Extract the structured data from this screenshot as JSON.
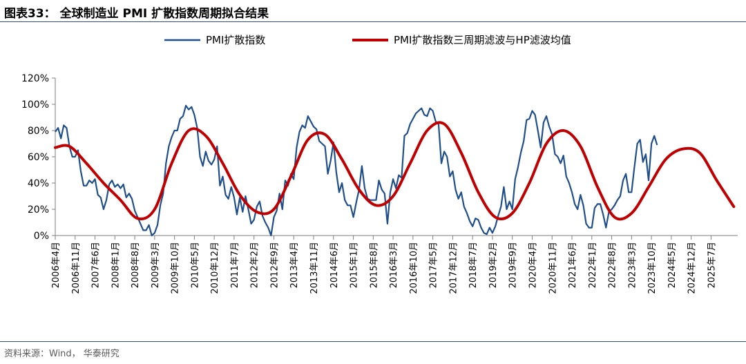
{
  "header": {
    "title": "图表33： 全球制造业 PMI 扩散指数周期拟合结果"
  },
  "footer": {
    "source": "资料来源：Wind， 华泰研究"
  },
  "colors": {
    "pmi_line": "#1f4e8c",
    "filter_line": "#c00000",
    "rule": "#2e4d7f"
  },
  "chart_data": {
    "type": "line",
    "title": "",
    "xlabel": "",
    "ylabel": "",
    "ylim": [
      0,
      120
    ],
    "y_ticks": [
      "0%",
      "20%",
      "40%",
      "60%",
      "80%",
      "100%",
      "120%"
    ],
    "y_tick_values": [
      0,
      20,
      40,
      60,
      80,
      100,
      120
    ],
    "x_tick_labels": [
      "2006年4月",
      "2006年11月",
      "2007年6月",
      "2008年1月",
      "2008年8月",
      "2009年3月",
      "2009年10月",
      "2010年5月",
      "2010年12月",
      "2011年7月",
      "2012年2月",
      "2012年9月",
      "2013年4月",
      "2013年11月",
      "2014年6月",
      "2015年1月",
      "2015年8月",
      "2016年3月",
      "2016年10月",
      "2017年5月",
      "2017年12月",
      "2018年7月",
      "2019年2月",
      "2019年9月",
      "2020年4月",
      "2020年11月",
      "2021年6月",
      "2022年1月",
      "2022年8月",
      "2023年3月",
      "2023年10月",
      "2024年5月",
      "2024年12月",
      "2025年7月"
    ],
    "grid": false,
    "legend_position": "top",
    "series": [
      {
        "name": "PMI扩散指数",
        "points": [
          [
            "2006年4月",
            79
          ],
          [
            "2006年5月",
            82
          ],
          [
            "2006年6月",
            74
          ],
          [
            "2006年7月",
            84
          ],
          [
            "2006年8月",
            82
          ],
          [
            "2006年9月",
            68
          ],
          [
            "2006年10月",
            60
          ],
          [
            "2006年11月",
            60
          ],
          [
            "2006年12月",
            65
          ],
          [
            "2007年1月",
            49
          ],
          [
            "2007年2月",
            38
          ],
          [
            "2007年3月",
            38
          ],
          [
            "2007年4月",
            42
          ],
          [
            "2007年5月",
            40
          ],
          [
            "2007年6月",
            43
          ],
          [
            "2007年7月",
            31
          ],
          [
            "2007年8月",
            29
          ],
          [
            "2007年9月",
            20
          ],
          [
            "2007年10月",
            27
          ],
          [
            "2007年11月",
            39
          ],
          [
            "2007年12月",
            42
          ],
          [
            "2008年1月",
            37
          ],
          [
            "2008年2月",
            39
          ],
          [
            "2008年3月",
            36
          ],
          [
            "2008年4月",
            39
          ],
          [
            "2008年5月",
            29
          ],
          [
            "2008年6月",
            32
          ],
          [
            "2008年7月",
            28
          ],
          [
            "2008年8月",
            19
          ],
          [
            "2008年9月",
            14
          ],
          [
            "2008年10月",
            9
          ],
          [
            "2008年11月",
            4
          ],
          [
            "2008年12月",
            4
          ],
          [
            "2009年1月",
            8
          ],
          [
            "2009年2月",
            0
          ],
          [
            "2009年3月",
            2
          ],
          [
            "2009年4月",
            8
          ],
          [
            "2009年5月",
            23
          ],
          [
            "2009年6月",
            32
          ],
          [
            "2009年7月",
            55
          ],
          [
            "2009年8月",
            68
          ],
          [
            "2009年9月",
            75
          ],
          [
            "2009年10月",
            80
          ],
          [
            "2009年11月",
            80
          ],
          [
            "2009年12月",
            89
          ],
          [
            "2010年1月",
            91
          ],
          [
            "2010年2月",
            99
          ],
          [
            "2010年3月",
            96
          ],
          [
            "2010年4月",
            98
          ],
          [
            "2010年5月",
            92
          ],
          [
            "2010年6月",
            82
          ],
          [
            "2010年7月",
            60
          ],
          [
            "2010年8月",
            53
          ],
          [
            "2010年9月",
            64
          ],
          [
            "2010年10月",
            57
          ],
          [
            "2010年11月",
            54
          ],
          [
            "2010年12月",
            58
          ],
          [
            "2011年1月",
            68
          ],
          [
            "2011年2月",
            38
          ],
          [
            "2011年3月",
            45
          ],
          [
            "2011年4月",
            31
          ],
          [
            "2011年5月",
            28
          ],
          [
            "2011年6月",
            37
          ],
          [
            "2011年7月",
            29
          ],
          [
            "2011年8月",
            16
          ],
          [
            "2011年9月",
            29
          ],
          [
            "2011年10月",
            18
          ],
          [
            "2011年11月",
            30
          ],
          [
            "2011年12月",
            20
          ],
          [
            "2012年1月",
            9
          ],
          [
            "2012年2月",
            12
          ],
          [
            "2012年3月",
            22
          ],
          [
            "2012年4月",
            26
          ],
          [
            "2012年5月",
            15
          ],
          [
            "2012年6月",
            10
          ],
          [
            "2012年7月",
            6
          ],
          [
            "2012年8月",
            0
          ],
          [
            "2012年9月",
            14
          ],
          [
            "2012年10月",
            19
          ],
          [
            "2012年11月",
            32
          ],
          [
            "2012年12月",
            20
          ],
          [
            "2013年1月",
            42
          ],
          [
            "2013年2月",
            38
          ],
          [
            "2013年3月",
            47
          ],
          [
            "2013年4月",
            43
          ],
          [
            "2013年5月",
            67
          ],
          [
            "2013年6月",
            79
          ],
          [
            "2013年7月",
            84
          ],
          [
            "2013年8月",
            82
          ],
          [
            "2013年9月",
            91
          ],
          [
            "2013年10月",
            87
          ],
          [
            "2013年11月",
            83
          ],
          [
            "2013年12月",
            81
          ],
          [
            "2014年1月",
            72
          ],
          [
            "2014年2月",
            70
          ],
          [
            "2014年3月",
            68
          ],
          [
            "2014年4月",
            47
          ],
          [
            "2014年5月",
            57
          ],
          [
            "2014年6月",
            71
          ],
          [
            "2014年7月",
            48
          ],
          [
            "2014年8月",
            33
          ],
          [
            "2014年9月",
            40
          ],
          [
            "2014年10月",
            27
          ],
          [
            "2014年11月",
            23
          ],
          [
            "2014年12月",
            23
          ],
          [
            "2015年1月",
            14
          ],
          [
            "2015年2月",
            25
          ],
          [
            "2015年3月",
            35
          ],
          [
            "2015年4月",
            53
          ],
          [
            "2015年5月",
            36
          ],
          [
            "2015年6月",
            28
          ],
          [
            "2015年7月",
            27
          ],
          [
            "2015年8月",
            27
          ],
          [
            "2015年9月",
            27
          ],
          [
            "2015年10月",
            42
          ],
          [
            "2015年11月",
            35
          ],
          [
            "2015年12月",
            32
          ],
          [
            "2016年1月",
            9
          ],
          [
            "2016年2月",
            33
          ],
          [
            "2016年3月",
            43
          ],
          [
            "2016年4月",
            36
          ],
          [
            "2016年5月",
            46
          ],
          [
            "2016年6月",
            44
          ],
          [
            "2016年7月",
            76
          ],
          [
            "2016年8月",
            78
          ],
          [
            "2016年9月",
            85
          ],
          [
            "2016年10月",
            89
          ],
          [
            "2016年11月",
            93
          ],
          [
            "2016年12月",
            95
          ],
          [
            "2017年1月",
            97
          ],
          [
            "2017年2月",
            92
          ],
          [
            "2017年3月",
            91
          ],
          [
            "2017年4月",
            97
          ],
          [
            "2017年5月",
            95
          ],
          [
            "2017年6月",
            87
          ],
          [
            "2017年7月",
            85
          ],
          [
            "2017年8月",
            55
          ],
          [
            "2017年9月",
            64
          ],
          [
            "2017年10月",
            60
          ],
          [
            "2017年11月",
            45
          ],
          [
            "2017年12月",
            49
          ],
          [
            "2018年1月",
            35
          ],
          [
            "2018年2月",
            28
          ],
          [
            "2018年3月",
            33
          ],
          [
            "2018年4月",
            22
          ],
          [
            "2018年5月",
            17
          ],
          [
            "2018年6月",
            11
          ],
          [
            "2018年7月",
            7
          ],
          [
            "2018年8月",
            13
          ],
          [
            "2018年9月",
            12
          ],
          [
            "2018年10月",
            6
          ],
          [
            "2018年11月",
            2
          ],
          [
            "2018年12月",
            1
          ],
          [
            "2019年1月",
            6
          ],
          [
            "2019年2月",
            2
          ],
          [
            "2019年3月",
            7
          ],
          [
            "2019年4月",
            15
          ],
          [
            "2019年5月",
            22
          ],
          [
            "2019年6月",
            37
          ],
          [
            "2019年7月",
            20
          ],
          [
            "2019年8月",
            26
          ],
          [
            "2019年9月",
            20
          ],
          [
            "2019年10月",
            43
          ],
          [
            "2019年11月",
            52
          ],
          [
            "2019年12月",
            63
          ],
          [
            "2020年1月",
            72
          ],
          [
            "2020年2月",
            88
          ],
          [
            "2020年3月",
            89
          ],
          [
            "2020年4月",
            95
          ],
          [
            "2020年5月",
            92
          ],
          [
            "2020年6月",
            80
          ],
          [
            "2020年7月",
            67
          ],
          [
            "2020年8月",
            86
          ],
          [
            "2020年9月",
            91
          ],
          [
            "2020年10月",
            83
          ],
          [
            "2020年11月",
            77
          ],
          [
            "2020年12月",
            62
          ],
          [
            "2021年1月",
            60
          ],
          [
            "2021年2月",
            55
          ],
          [
            "2021年3月",
            61
          ],
          [
            "2021年4月",
            45
          ],
          [
            "2021年5月",
            40
          ],
          [
            "2021年6月",
            33
          ],
          [
            "2021年7月",
            24
          ],
          [
            "2021年8月",
            20
          ],
          [
            "2021年9月",
            31
          ],
          [
            "2021年10月",
            23
          ],
          [
            "2021年11月",
            9
          ],
          [
            "2021年12月",
            6
          ],
          [
            "2022年1月",
            6
          ],
          [
            "2022年2月",
            21
          ],
          [
            "2022年3月",
            24
          ],
          [
            "2022年4月",
            24
          ],
          [
            "2022年5月",
            16
          ],
          [
            "2022年6月",
            6
          ],
          [
            "2022年7月",
            18
          ],
          [
            "2022年8月",
            20
          ],
          [
            "2022年9月",
            23
          ],
          [
            "2022年10月",
            27
          ],
          [
            "2022年11月",
            30
          ],
          [
            "2022年12月",
            42
          ],
          [
            "2023年1月",
            47
          ],
          [
            "2023年2月",
            33
          ],
          [
            "2023年3月",
            33
          ],
          [
            "2023年4月",
            52
          ],
          [
            "2023年5月",
            70
          ],
          [
            "2023年6月",
            73
          ],
          [
            "2023年7月",
            56
          ],
          [
            "2023年8月",
            62
          ],
          [
            "2023年9月",
            42
          ],
          [
            "2023年10月",
            70
          ],
          [
            "2023年11月",
            76
          ],
          [
            "2023年12月",
            69
          ]
        ]
      },
      {
        "name": "PMI扩散指数三周期滤波与HP滤波均值",
        "points": [
          [
            "2006年4月",
            67
          ],
          [
            "2006年9月",
            68
          ],
          [
            "2007年3月",
            55
          ],
          [
            "2007年9月",
            40
          ],
          [
            "2008年3月",
            27
          ],
          [
            "2008年9月",
            13
          ],
          [
            "2009年3月",
            20
          ],
          [
            "2009年9月",
            55
          ],
          [
            "2010年3月",
            80
          ],
          [
            "2010年9月",
            76
          ],
          [
            "2011年3月",
            55
          ],
          [
            "2011年9月",
            31
          ],
          [
            "2012年3月",
            18
          ],
          [
            "2012年9月",
            20
          ],
          [
            "2013年3月",
            45
          ],
          [
            "2013年9月",
            73
          ],
          [
            "2014年3月",
            77
          ],
          [
            "2014年9月",
            58
          ],
          [
            "2015年3月",
            35
          ],
          [
            "2015年9月",
            23
          ],
          [
            "2016年3月",
            30
          ],
          [
            "2016年9月",
            55
          ],
          [
            "2017年3月",
            80
          ],
          [
            "2017年9月",
            85
          ],
          [
            "2018年3月",
            63
          ],
          [
            "2018年9月",
            33
          ],
          [
            "2019年3月",
            14
          ],
          [
            "2019年9月",
            17
          ],
          [
            "2020年3月",
            40
          ],
          [
            "2020年9月",
            70
          ],
          [
            "2021年3月",
            80
          ],
          [
            "2021年9月",
            68
          ],
          [
            "2022年3月",
            37
          ],
          [
            "2022年9月",
            14
          ],
          [
            "2023年3月",
            17
          ],
          [
            "2023年9月",
            37
          ],
          [
            "2024年3月",
            58
          ],
          [
            "2024年9月",
            66
          ],
          [
            "2025年3月",
            63
          ],
          [
            "2025年9月",
            42
          ],
          [
            "2026年3月",
            22
          ]
        ]
      }
    ]
  }
}
